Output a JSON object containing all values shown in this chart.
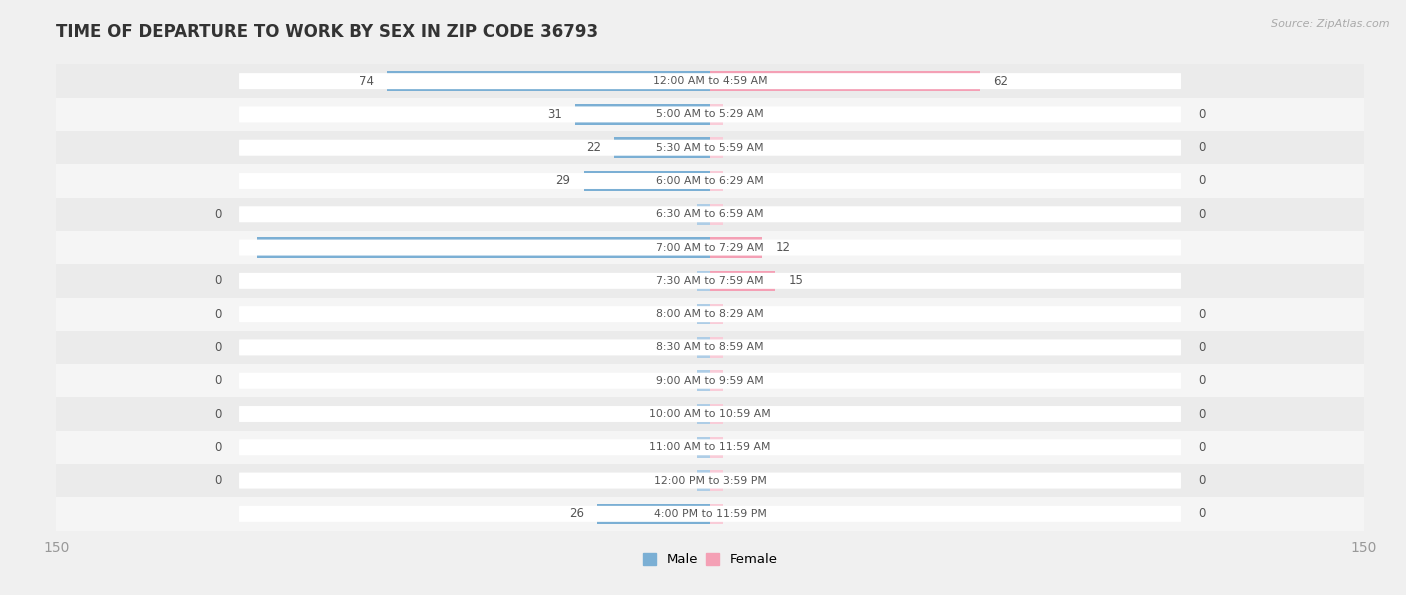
{
  "title": "TIME OF DEPARTURE TO WORK BY SEX IN ZIP CODE 36793",
  "source": "Source: ZipAtlas.com",
  "categories": [
    "12:00 AM to 4:59 AM",
    "5:00 AM to 5:29 AM",
    "5:30 AM to 5:59 AM",
    "6:00 AM to 6:29 AM",
    "6:30 AM to 6:59 AM",
    "7:00 AM to 7:29 AM",
    "7:30 AM to 7:59 AM",
    "8:00 AM to 8:29 AM",
    "8:30 AM to 8:59 AM",
    "9:00 AM to 9:59 AM",
    "10:00 AM to 10:59 AM",
    "11:00 AM to 11:59 AM",
    "12:00 PM to 3:59 PM",
    "4:00 PM to 11:59 PM"
  ],
  "male_values": [
    74,
    31,
    22,
    29,
    0,
    104,
    0,
    0,
    0,
    0,
    0,
    0,
    0,
    26
  ],
  "female_values": [
    62,
    0,
    0,
    0,
    0,
    12,
    15,
    0,
    0,
    0,
    0,
    0,
    0,
    0
  ],
  "male_color": "#7bafd4",
  "male_color_light": "#aecde6",
  "female_color": "#f4a0b5",
  "female_color_light": "#f9ccd8",
  "xlim": 150,
  "bg_color": "#f0f0f0",
  "row_odd_color": "#ebebeb",
  "row_even_color": "#f5f5f5",
  "label_color": "#555555",
  "white_label_color": "#ffffff",
  "title_color": "#333333",
  "axis_label_color": "#999999",
  "pill_color": "#ffffff"
}
